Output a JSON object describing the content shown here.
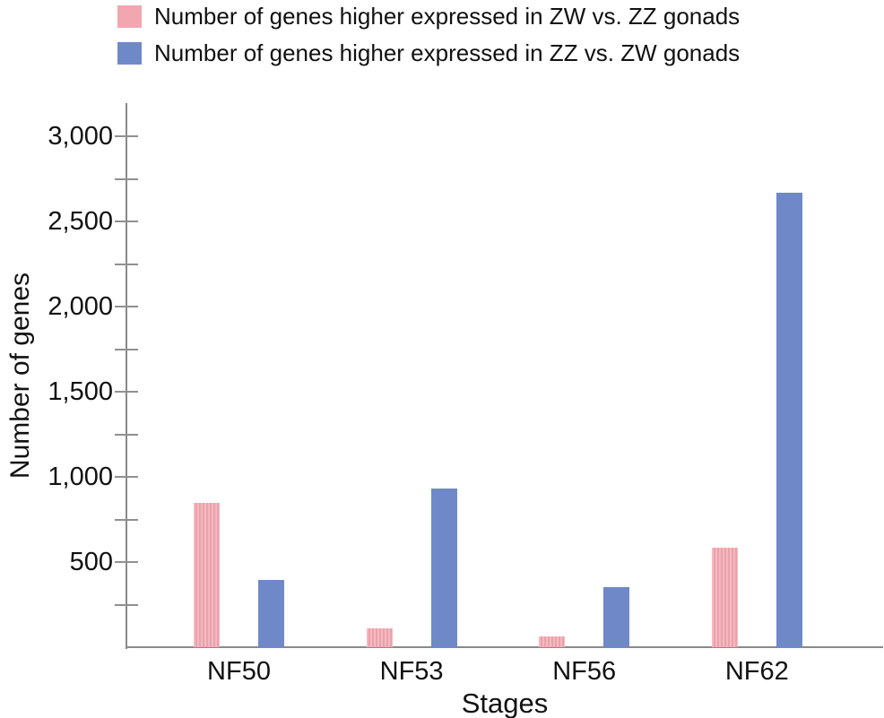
{
  "legend": {
    "items": [
      {
        "label": "Number of genes higher expressed in ZW vs. ZZ gonads",
        "color": "#f2a6b0"
      },
      {
        "label": "Number of genes higher expressed in ZZ vs. ZW gonads",
        "color": "#6f89c8"
      }
    ]
  },
  "chart_data": {
    "type": "bar",
    "title": "",
    "xlabel": "Stages",
    "ylabel": "Number of genes",
    "categories": [
      "NF50",
      "NF53",
      "NF56",
      "NF62"
    ],
    "series": [
      {
        "name": "Number of genes higher expressed in ZW vs. ZZ gonads",
        "color": "#f2a6b0",
        "values": [
          850,
          110,
          65,
          585
        ]
      },
      {
        "name": "Number of genes higher expressed in ZZ vs. ZW gonads",
        "color": "#6f89c8",
        "values": [
          395,
          930,
          355,
          2670
        ]
      }
    ],
    "ylim": [
      0,
      3200
    ],
    "yticks_major": [
      500,
      1000,
      1500,
      2000,
      2500,
      3000
    ],
    "ytick_labels": [
      "500",
      "1,000",
      "1,500",
      "2,000",
      "2,500",
      "3,000"
    ],
    "yticks_minor": [
      250,
      750,
      1250,
      1750,
      2250,
      2750
    ],
    "grid": false,
    "legend_position": "top",
    "axis_color": "#8a8a8a"
  }
}
